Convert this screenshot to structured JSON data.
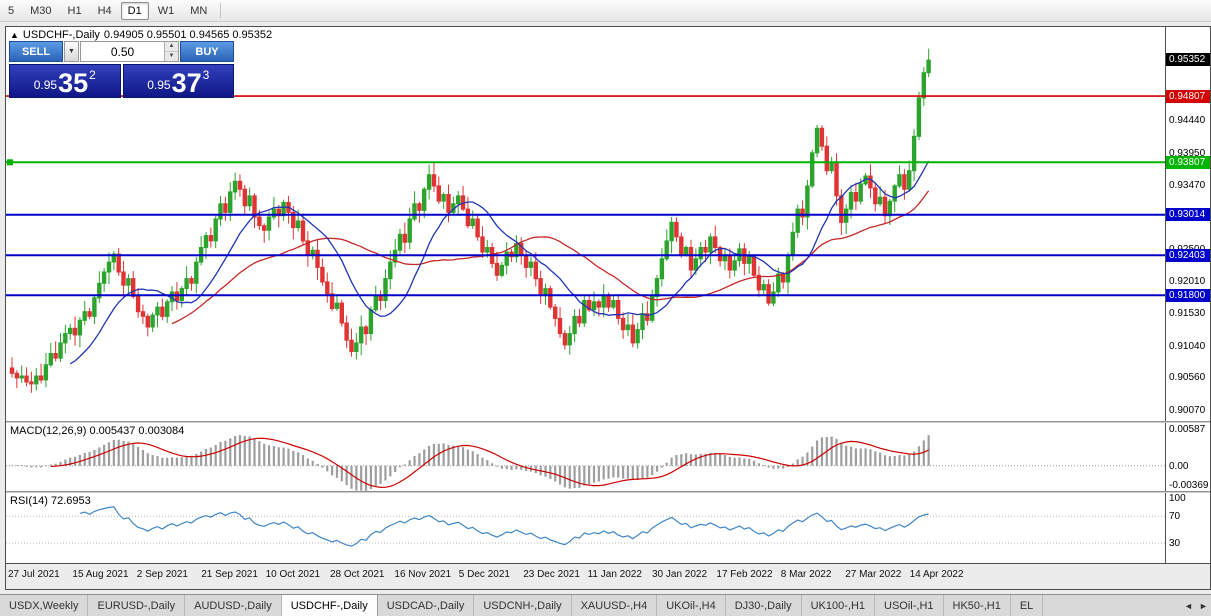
{
  "toolbar": {
    "timeframes": [
      "5",
      "M30",
      "H1",
      "H4",
      "D1",
      "W1",
      "MN"
    ],
    "active_timeframe": "D1"
  },
  "chart": {
    "collapse_icon": "▲",
    "symbol": "USDCHF-,Daily",
    "ohlc": "0.94905 0.95501 0.94565 0.95352"
  },
  "trade_panel": {
    "sell_label": "SELL",
    "buy_label": "BUY",
    "lot_value": "0.50",
    "dropdown_icon": "▼",
    "bid": {
      "prefix": "0.95",
      "big": "35",
      "sup": "2"
    },
    "ask": {
      "prefix": "0.95",
      "big": "37",
      "sup": "3"
    }
  },
  "price_scale": {
    "max": 0.9585,
    "min": 0.899,
    "ticks": [
      "0.94820",
      "0.94440",
      "0.93950",
      "0.93470",
      "0.92980",
      "0.92500",
      "0.92010",
      "0.91530",
      "0.91040",
      "0.90560",
      "0.90070"
    ]
  },
  "levels": [
    {
      "label": "0.95352",
      "price": 0.95352,
      "color": "#000000",
      "line": false
    },
    {
      "label": "0.94807",
      "price": 0.94807,
      "color": "#d40000",
      "line": true,
      "width": 1.6
    },
    {
      "label": "0.93807",
      "price": 0.93807,
      "color": "#00b400",
      "line": true,
      "width": 2,
      "marker": true
    },
    {
      "label": "0.93014",
      "price": 0.93014,
      "color": "#0000cc",
      "line": true,
      "width": 2
    },
    {
      "label": "0.92403",
      "price": 0.92403,
      "color": "#0000cc",
      "line": true,
      "width": 2
    },
    {
      "label": "0.91800",
      "price": 0.918,
      "color": "#0000cc",
      "line": true,
      "width": 2
    }
  ],
  "chart_data": {
    "type": "candlestick",
    "symbol": "USDCHF",
    "timeframe": "Daily",
    "open_display": "0.94905",
    "high_display": "0.95501",
    "low_display": "0.94565",
    "close_display": "0.95352",
    "up_color": "#2ca32c",
    "down_color": "#e03434",
    "ma_fast_period": 13,
    "ma_fast_color": "#2135b4",
    "ma_slow_period": 34,
    "ma_slow_color": "#c62828",
    "x_labels": [
      "27 Jul 2021",
      "15 Aug 2021",
      "2 Sep 2021",
      "21 Sep 2021",
      "10 Oct 2021",
      "28 Oct 2021",
      "16 Nov 2021",
      "5 Dec 2021",
      "23 Dec 2021",
      "11 Jan 2022",
      "30 Jan 2022",
      "17 Feb 2022",
      "8 Mar 2022",
      "27 Mar 2022",
      "14 Apr 2022"
    ],
    "closes": [
      0.9062,
      0.9055,
      0.9058,
      0.9049,
      0.9046,
      0.9058,
      0.9052,
      0.9075,
      0.9092,
      0.9085,
      0.9108,
      0.9122,
      0.913,
      0.912,
      0.9142,
      0.9155,
      0.9148,
      0.9176,
      0.9198,
      0.9215,
      0.923,
      0.9242,
      0.9215,
      0.9195,
      0.9205,
      0.9178,
      0.9155,
      0.9148,
      0.9132,
      0.915,
      0.9162,
      0.9148,
      0.917,
      0.9185,
      0.9172,
      0.919,
      0.9205,
      0.9198,
      0.923,
      0.9252,
      0.927,
      0.9262,
      0.9295,
      0.9318,
      0.9305,
      0.9336,
      0.9352,
      0.934,
      0.9315,
      0.933,
      0.9298,
      0.9285,
      0.9278,
      0.9298,
      0.931,
      0.93,
      0.932,
      0.9305,
      0.9282,
      0.9292,
      0.9262,
      0.924,
      0.9248,
      0.9222,
      0.92,
      0.9182,
      0.916,
      0.9168,
      0.9138,
      0.9112,
      0.9095,
      0.9108,
      0.9132,
      0.9122,
      0.9158,
      0.918,
      0.9172,
      0.9205,
      0.923,
      0.9248,
      0.9272,
      0.926,
      0.9295,
      0.9318,
      0.9308,
      0.934,
      0.9362,
      0.9345,
      0.9322,
      0.9332,
      0.9305,
      0.9318,
      0.933,
      0.931,
      0.9285,
      0.9295,
      0.9268,
      0.9245,
      0.9252,
      0.9228,
      0.921,
      0.9225,
      0.9245,
      0.9238,
      0.9258,
      0.924,
      0.9222,
      0.923,
      0.9205,
      0.9182,
      0.919,
      0.9162,
      0.9145,
      0.9122,
      0.9105,
      0.9122,
      0.9148,
      0.9138,
      0.9172,
      0.9158,
      0.917,
      0.9162,
      0.918,
      0.9162,
      0.9172,
      0.9145,
      0.9128,
      0.9135,
      0.9108,
      0.9128,
      0.9152,
      0.9142,
      0.9178,
      0.9205,
      0.9235,
      0.9262,
      0.929,
      0.9268,
      0.9242,
      0.9252,
      0.9218,
      0.9235,
      0.9252,
      0.9245,
      0.9268,
      0.9252,
      0.9232,
      0.924,
      0.9218,
      0.9232,
      0.925,
      0.9228,
      0.9238,
      0.921,
      0.9188,
      0.9196,
      0.9168,
      0.9185,
      0.9212,
      0.92,
      0.924,
      0.9275,
      0.931,
      0.9298,
      0.9345,
      0.9395,
      0.9432,
      0.9405,
      0.9368,
      0.938,
      0.933,
      0.929,
      0.931,
      0.9335,
      0.9322,
      0.9348,
      0.936,
      0.9342,
      0.9318,
      0.9328,
      0.93,
      0.9322,
      0.9345,
      0.9362,
      0.934,
      0.9368,
      0.942,
      0.9478,
      0.9516,
      0.9535
    ]
  },
  "macd": {
    "label": "MACD(12,26,9) 0.005437 0.003084",
    "fast": 12,
    "slow": 26,
    "signal": 9,
    "range": {
      "max": 0.0068,
      "min": -0.004
    },
    "axis": [
      "0.00587",
      "0.00",
      "-0.00369"
    ],
    "bar_color": "#9e9e9e",
    "signal_color": "#cc0000"
  },
  "rsi": {
    "label": "RSI(14) 72.6953",
    "period": 14,
    "range": {
      "max": 105,
      "min": 0
    },
    "levels": [
      70,
      30
    ],
    "axis": [
      "100",
      "70",
      "30"
    ],
    "line_color": "#3e86c8"
  },
  "tabs": {
    "items": [
      "USDX,Weekly",
      "EURUSD-,Daily",
      "AUDUSD-,Daily",
      "USDCHF-,Daily",
      "USDCAD-,Daily",
      "USDCNH-,Daily",
      "XAUUSD-,H4",
      "UKOil-,H4",
      "DJ30-,Daily",
      "UK100-,H1",
      "USOil-,H1",
      "HK50-,H1",
      "EL"
    ],
    "active": "USDCHF-,Daily",
    "scroll_left": "◄",
    "scroll_right": "►"
  }
}
